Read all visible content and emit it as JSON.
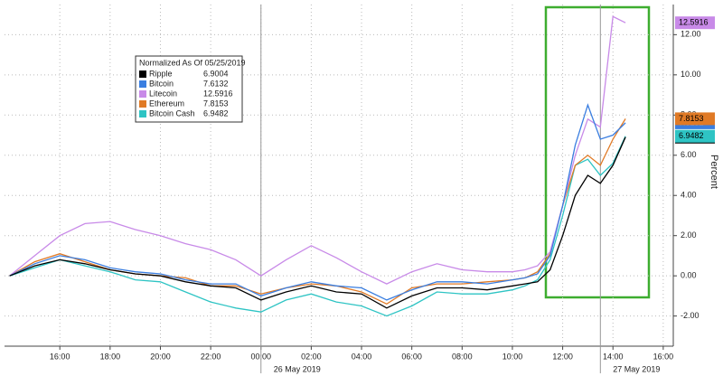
{
  "chart_data": {
    "type": "line",
    "legend_title": "Normalized As Of 05/25/2019",
    "y_label": "Percent",
    "date_labels": [
      {
        "value": 24,
        "label": "26 May 2019"
      },
      {
        "value": 37.5,
        "label": "27 May 2019"
      }
    ],
    "x": [
      14,
      15,
      16,
      17,
      18,
      19,
      20,
      21,
      22,
      23,
      24,
      25,
      26,
      27,
      28,
      29,
      30,
      31,
      32,
      33,
      34,
      34.5,
      35,
      35.5,
      36,
      36.5,
      37,
      37.5,
      38,
      38.5
    ],
    "xlim": [
      13.8,
      40.4
    ],
    "xticks": [
      {
        "value": 16,
        "label": "16:00"
      },
      {
        "value": 18,
        "label": "18:00"
      },
      {
        "value": 20,
        "label": "20:00"
      },
      {
        "value": 22,
        "label": "22:00"
      },
      {
        "value": 24,
        "label": "00:00"
      },
      {
        "value": 26,
        "label": "02:00"
      },
      {
        "value": 28,
        "label": "04:00"
      },
      {
        "value": 30,
        "label": "06:00"
      },
      {
        "value": 32,
        "label": "08:00"
      },
      {
        "value": 34,
        "label": "10:00"
      },
      {
        "value": 36,
        "label": "12:00"
      },
      {
        "value": 38,
        "label": "14:00"
      },
      {
        "value": 40,
        "label": "16:00"
      }
    ],
    "ylim": [
      -3.5,
      13.5
    ],
    "yticks": [
      {
        "value": -2,
        "label": "-2.00"
      },
      {
        "value": 0,
        "label": "0.00"
      },
      {
        "value": 2,
        "label": "2.00"
      },
      {
        "value": 4,
        "label": "4.00"
      },
      {
        "value": 6,
        "label": "6.00"
      },
      {
        "value": 8,
        "label": "8.00"
      },
      {
        "value": 10,
        "label": "10.00"
      },
      {
        "value": 12,
        "label": "12.00"
      }
    ],
    "grid": true,
    "series": [
      {
        "name": "Ripple",
        "color": "#000000",
        "values": [
          0,
          0.5,
          0.8,
          0.6,
          0.3,
          0.1,
          0,
          -0.3,
          -0.5,
          -0.6,
          -1.2,
          -0.8,
          -0.5,
          -0.8,
          -0.9,
          -1.6,
          -1.0,
          -0.6,
          -0.6,
          -0.7,
          -0.5,
          -0.4,
          -0.3,
          0.3,
          2.0,
          4.0,
          5.0,
          4.6,
          5.5,
          6.9004
        ]
      },
      {
        "name": "Bitcoin",
        "color": "#3a7ee0",
        "values": [
          0,
          0.6,
          1.0,
          0.8,
          0.4,
          0.2,
          0.1,
          -0.2,
          -0.4,
          -0.4,
          -1.0,
          -0.6,
          -0.3,
          -0.5,
          -0.6,
          -1.2,
          -0.7,
          -0.3,
          -0.3,
          -0.4,
          -0.2,
          -0.1,
          0.1,
          1.0,
          3.5,
          6.5,
          8.5,
          6.8,
          7.0,
          7.6132
        ]
      },
      {
        "name": "Litecoin",
        "color": "#c88ae8",
        "values": [
          0,
          1.0,
          2.0,
          2.6,
          2.7,
          2.3,
          2.0,
          1.6,
          1.3,
          0.8,
          0,
          0.8,
          1.5,
          0.9,
          0.2,
          -0.4,
          0.2,
          0.6,
          0.3,
          0.2,
          0.2,
          0.3,
          0.5,
          1.2,
          3.5,
          6.0,
          7.8,
          7.4,
          12.9,
          12.5916
        ]
      },
      {
        "name": "Ethereum",
        "color": "#e07a26",
        "values": [
          0,
          0.7,
          1.1,
          0.7,
          0.3,
          0.1,
          0,
          -0.1,
          -0.5,
          -0.5,
          -0.9,
          -0.6,
          -0.4,
          -0.5,
          -0.8,
          -1.4,
          -0.6,
          -0.4,
          -0.4,
          -0.3,
          -0.2,
          -0.1,
          0.2,
          1.1,
          3.5,
          5.5,
          6.0,
          5.5,
          6.8,
          7.8153
        ]
      },
      {
        "name": "Bitcoin Cash",
        "color": "#2ec4c4",
        "values": [
          0,
          0.4,
          0.8,
          0.5,
          0.2,
          -0.2,
          -0.3,
          -0.8,
          -1.3,
          -1.6,
          -1.8,
          -1.2,
          -0.9,
          -1.3,
          -1.5,
          -2.0,
          -1.5,
          -0.8,
          -0.9,
          -0.9,
          -0.7,
          -0.5,
          -0.2,
          0.8,
          3.0,
          5.5,
          5.8,
          5.0,
          5.6,
          6.9482
        ]
      }
    ]
  }
}
